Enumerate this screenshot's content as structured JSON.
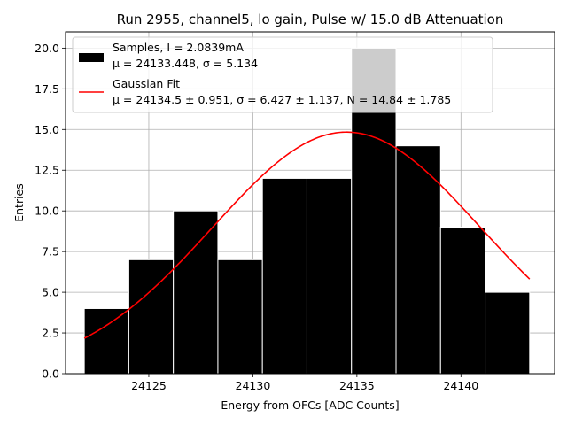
{
  "chart_data": {
    "type": "bar",
    "title": "Run 2955, channel5, lo gain, Pulse w/ 15.0 dB Attenuation",
    "xlabel": "Energy from OFCs [ADC Counts]",
    "ylabel": "Entries",
    "xlim": [
      24121.0,
      24144.5
    ],
    "ylim": [
      0,
      21
    ],
    "grid": true,
    "legend_position": "top-left",
    "x_ticks": [
      24125,
      24130,
      24135,
      24140
    ],
    "x_tick_labels": [
      "24125",
      "24130",
      "24135",
      "24140"
    ],
    "y_ticks": [
      0,
      2.5,
      5,
      7.5,
      10,
      12.5,
      15,
      17.5,
      20
    ],
    "y_tick_labels": [
      "0.0",
      "2.5",
      "5.0",
      "7.5",
      "10.0",
      "12.5",
      "15.0",
      "17.5",
      "20.0"
    ],
    "histogram": {
      "name_line1": "Samples, I = 2.0839mA",
      "name_line2": "μ = 24133.448, σ = 5.134",
      "color": "#000000",
      "edge_color": "#ffffff",
      "bin_edges": [
        24121.9,
        24124.04,
        24126.18,
        24128.32,
        24130.46,
        24132.6,
        24134.74,
        24136.88,
        24139.02,
        24141.16,
        24143.3
      ],
      "counts": [
        4,
        7,
        10,
        7,
        12,
        12,
        20,
        14,
        9,
        5
      ]
    },
    "fit": {
      "name_line1": "Gaussian Fit",
      "name_line2": "μ = 24134.5 ± 0.951, σ = 6.427 ± 1.137, N = 14.84 ± 1.785",
      "color": "#ff0000",
      "mu": 24134.5,
      "sigma": 6.427,
      "N": 14.84,
      "x_range": [
        24121.9,
        24143.3
      ]
    }
  }
}
